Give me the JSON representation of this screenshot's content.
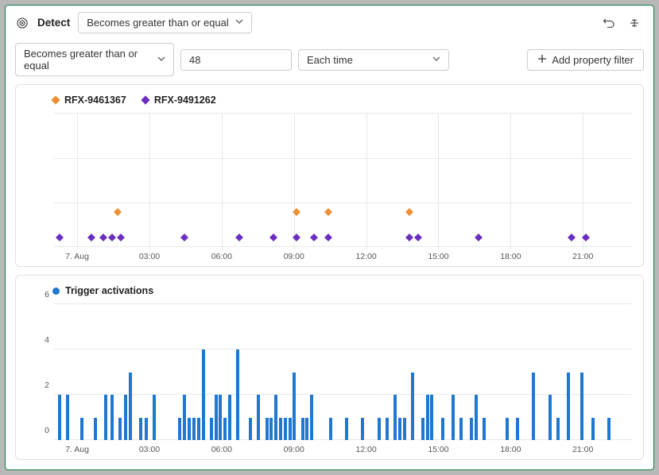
{
  "header": {
    "title": "Detect",
    "mode_dropdown": "Becomes greater than or equal"
  },
  "filters": {
    "condition": "Becomes greater than or equal",
    "value": "48",
    "frequency": "Each time",
    "add_button": "Add property filter"
  },
  "scatter_chart": {
    "series": [
      {
        "label": "RFX-9461367",
        "color": "#ed8f33"
      },
      {
        "label": "RFX-9491262",
        "color": "#6b2fbf"
      }
    ],
    "grid_color": "#e8e8e8",
    "gridlines_h": [
      0,
      33,
      66,
      100
    ],
    "x_ticks": [
      {
        "pos": 4,
        "label": "7. Aug"
      },
      {
        "pos": 16.5,
        "label": "03:00"
      },
      {
        "pos": 29,
        "label": "06:00"
      },
      {
        "pos": 41.5,
        "label": "09:00"
      },
      {
        "pos": 54,
        "label": "12:00"
      },
      {
        "pos": 66.5,
        "label": "15:00"
      },
      {
        "pos": 79,
        "label": "18:00"
      },
      {
        "pos": 91.5,
        "label": "21:00"
      }
    ],
    "points_orange_y": 22,
    "points_orange_x": [
      11,
      42,
      47.5,
      61.5
    ],
    "points_purple_y": 3,
    "points_purple_x": [
      1,
      6.5,
      8.5,
      10,
      11.5,
      22.5,
      32,
      38,
      42,
      45,
      47.5,
      61.5,
      63,
      73.5,
      89.5,
      92
    ]
  },
  "bar_chart": {
    "legend_label": "Trigger activations",
    "legend_color": "#1f77d0",
    "bar_color": "#1f77d0",
    "grid_color": "#e8e8e8",
    "ylim": [
      0,
      6
    ],
    "y_ticks": [
      0,
      2,
      4,
      6
    ],
    "x_ticks": [
      {
        "pos": 4,
        "label": "7. Aug"
      },
      {
        "pos": 16.5,
        "label": "03:00"
      },
      {
        "pos": 29,
        "label": "06:00"
      },
      {
        "pos": 41.5,
        "label": "09:00"
      },
      {
        "pos": 54,
        "label": "12:00"
      },
      {
        "pos": 66.5,
        "label": "15:00"
      },
      {
        "pos": 79,
        "label": "18:00"
      },
      {
        "pos": 91.5,
        "label": "21:00"
      }
    ],
    "bars": [
      {
        "x": 1,
        "v": 2
      },
      {
        "x": 2.4,
        "v": 2
      },
      {
        "x": 4.8,
        "v": 1
      },
      {
        "x": 7.2,
        "v": 1
      },
      {
        "x": 9,
        "v": 2
      },
      {
        "x": 10,
        "v": 2
      },
      {
        "x": 11.4,
        "v": 1
      },
      {
        "x": 12.4,
        "v": 2
      },
      {
        "x": 13.2,
        "v": 3
      },
      {
        "x": 15,
        "v": 1
      },
      {
        "x": 16,
        "v": 1
      },
      {
        "x": 17.4,
        "v": 2
      },
      {
        "x": 21.8,
        "v": 1
      },
      {
        "x": 22.6,
        "v": 2
      },
      {
        "x": 23.4,
        "v": 1
      },
      {
        "x": 24.2,
        "v": 1
      },
      {
        "x": 25,
        "v": 1
      },
      {
        "x": 25.8,
        "v": 4
      },
      {
        "x": 27.2,
        "v": 1
      },
      {
        "x": 28,
        "v": 2
      },
      {
        "x": 28.8,
        "v": 2
      },
      {
        "x": 29.6,
        "v": 1
      },
      {
        "x": 30.4,
        "v": 2
      },
      {
        "x": 31.8,
        "v": 4
      },
      {
        "x": 34,
        "v": 1
      },
      {
        "x": 35.4,
        "v": 2
      },
      {
        "x": 36.8,
        "v": 1
      },
      {
        "x": 37.6,
        "v": 1
      },
      {
        "x": 38.4,
        "v": 2
      },
      {
        "x": 39.2,
        "v": 1
      },
      {
        "x": 40,
        "v": 1
      },
      {
        "x": 40.8,
        "v": 1
      },
      {
        "x": 41.6,
        "v": 3
      },
      {
        "x": 43,
        "v": 1
      },
      {
        "x": 43.8,
        "v": 1
      },
      {
        "x": 44.6,
        "v": 2
      },
      {
        "x": 47.8,
        "v": 1
      },
      {
        "x": 50.6,
        "v": 1
      },
      {
        "x": 53.4,
        "v": 1
      },
      {
        "x": 56.2,
        "v": 1
      },
      {
        "x": 57.6,
        "v": 1
      },
      {
        "x": 59,
        "v": 2
      },
      {
        "x": 59.8,
        "v": 1
      },
      {
        "x": 60.6,
        "v": 1
      },
      {
        "x": 62,
        "v": 3
      },
      {
        "x": 63.8,
        "v": 1
      },
      {
        "x": 64.6,
        "v": 2
      },
      {
        "x": 65.4,
        "v": 2
      },
      {
        "x": 67.2,
        "v": 1
      },
      {
        "x": 69,
        "v": 2
      },
      {
        "x": 70.4,
        "v": 1
      },
      {
        "x": 72.2,
        "v": 1
      },
      {
        "x": 73,
        "v": 2
      },
      {
        "x": 74.4,
        "v": 1
      },
      {
        "x": 78.4,
        "v": 1
      },
      {
        "x": 80.2,
        "v": 1
      },
      {
        "x": 83,
        "v": 3
      },
      {
        "x": 85.8,
        "v": 2
      },
      {
        "x": 87.2,
        "v": 1
      },
      {
        "x": 89,
        "v": 3
      },
      {
        "x": 91.4,
        "v": 3
      },
      {
        "x": 93.2,
        "v": 1
      },
      {
        "x": 96,
        "v": 1
      }
    ]
  }
}
